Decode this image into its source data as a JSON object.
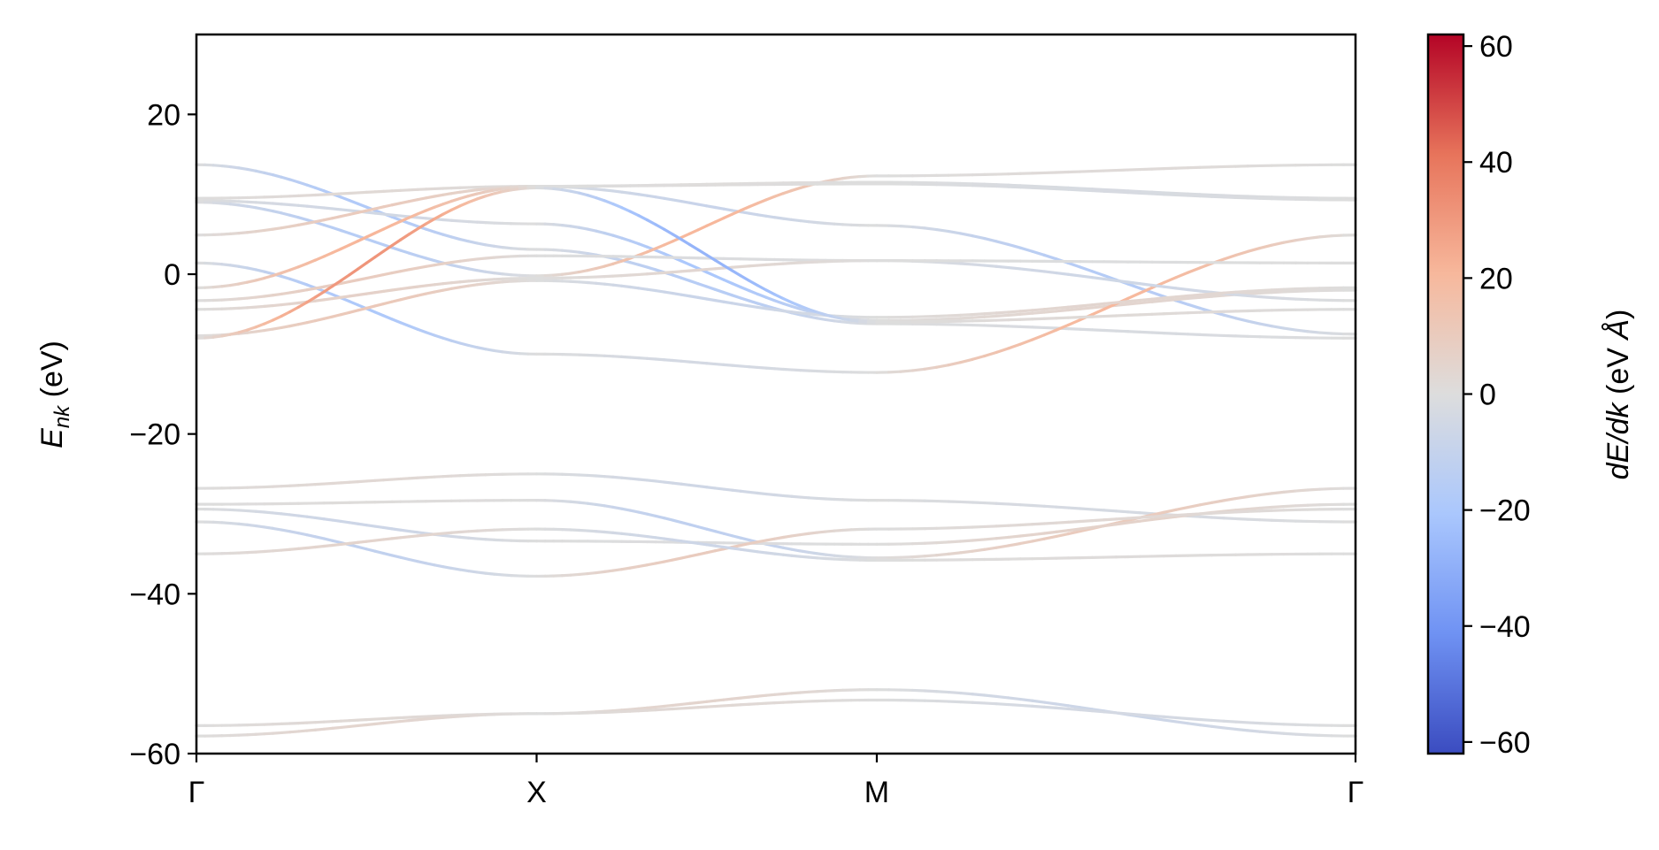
{
  "chart_data": {
    "type": "line",
    "title": "",
    "ylabel_main": "E",
    "ylabel_sub": "nk",
    "ylabel_unit": " (eV)",
    "ylim": [
      -60,
      30
    ],
    "yticks": [
      20,
      0,
      -20,
      -40,
      -60
    ],
    "yticklabels": [
      "20",
      "0",
      "−20",
      "−40",
      "−60"
    ],
    "x_ticks": [
      0,
      1,
      2,
      3
    ],
    "x_tick_positions": [
      0,
      0.2935,
      0.587,
      1.0
    ],
    "xticklabels": [
      "Γ",
      "X",
      "M",
      "Γ"
    ],
    "colormap": "coolwarm",
    "colorbar": {
      "label_main": "dE/dk",
      "label_unit": " (eV ",
      "label_unit_symbol": "Å",
      "label_close": ")",
      "range": [
        -62,
        62
      ],
      "ticks": [
        60,
        40,
        20,
        0,
        -20,
        -40,
        -60
      ],
      "ticklabels": [
        "60",
        "40",
        "20",
        "0",
        "−20",
        "−40",
        "−60"
      ],
      "colors": [
        "#3b4cc0",
        "#6f92f3",
        "#aac7fd",
        "#dddddd",
        "#f7b89c",
        "#e7745b",
        "#b40426"
      ]
    },
    "series": [
      {
        "x": [
          0,
          0.2935,
          0.587,
          1.0
        ],
        "y": [
          13.7,
          3.1,
          -6.2,
          -8.0
        ]
      },
      {
        "x": [
          0,
          0.2935,
          0.587,
          1.0
        ],
        "y": [
          9.5,
          11.0,
          6.1,
          -7.5
        ]
      },
      {
        "x": [
          0,
          0.2935,
          0.587,
          1.0
        ],
        "y": [
          9.2,
          6.3,
          -5.8,
          -2.0
        ]
      },
      {
        "x": [
          0,
          0.2935,
          0.587,
          1.0
        ],
        "y": [
          9.0,
          -0.2,
          12.3,
          13.7
        ]
      },
      {
        "x": [
          0,
          0.2935,
          0.587,
          1.0
        ],
        "y": [
          4.9,
          11.0,
          11.5,
          9.5
        ]
      },
      {
        "x": [
          0,
          0.2935,
          0.587,
          1.0
        ],
        "y": [
          1.4,
          -10.0,
          -12.3,
          4.9
        ]
      },
      {
        "x": [
          0,
          0.2935,
          0.587,
          1.0
        ],
        "y": [
          -1.7,
          11.0,
          11.3,
          9.3
        ]
      },
      {
        "x": [
          0,
          0.2935,
          0.587,
          1.0
        ],
        "y": [
          -3.3,
          2.3,
          1.7,
          -3.3
        ]
      },
      {
        "x": [
          0,
          0.2935,
          0.587,
          1.0
        ],
        "y": [
          -4.4,
          -0.5,
          1.7,
          1.4
        ]
      },
      {
        "x": [
          0,
          0.2935,
          0.587,
          1.0
        ],
        "y": [
          -7.7,
          -0.8,
          -5.4,
          -1.7
        ]
      },
      {
        "x": [
          0,
          0.2935,
          0.587,
          1.0
        ],
        "y": [
          -8.0,
          10.8,
          -6.0,
          -4.4
        ]
      },
      {
        "x": [
          0,
          0.2935,
          0.587,
          1.0
        ],
        "y": [
          -26.8,
          -25.0,
          -28.3,
          -31.0
        ]
      },
      {
        "x": [
          0,
          0.2935,
          0.587,
          1.0
        ],
        "y": [
          -28.8,
          -28.3,
          -35.5,
          -26.8
        ]
      },
      {
        "x": [
          0,
          0.2935,
          0.587,
          1.0
        ],
        "y": [
          -29.4,
          -33.4,
          -33.8,
          -28.8
        ]
      },
      {
        "x": [
          0,
          0.2935,
          0.587,
          1.0
        ],
        "y": [
          -31.0,
          -37.8,
          -31.9,
          -29.4
        ]
      },
      {
        "x": [
          0,
          0.2935,
          0.587,
          1.0
        ],
        "y": [
          -35.0,
          -31.9,
          -35.8,
          -35.0
        ]
      },
      {
        "x": [
          0,
          0.2935,
          0.587,
          1.0
        ],
        "y": [
          -56.5,
          -55.0,
          -52.0,
          -57.8
        ]
      },
      {
        "x": [
          0,
          0.2935,
          0.587,
          1.0
        ],
        "y": [
          -57.8,
          -55.0,
          -53.3,
          -56.5
        ]
      }
    ]
  }
}
